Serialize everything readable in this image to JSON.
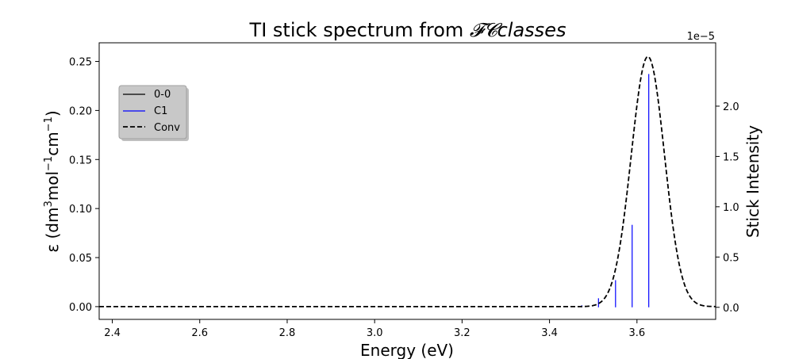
{
  "chart_data": {
    "type": "line",
    "title": "TI stick spectrum from ",
    "title_script": "𝓕𝓒",
    "title_italic": "classes",
    "xlabel": "Energy (eV)",
    "ylabel_left_prefix": "ε (dm",
    "ylabel_left_sup1": "3",
    "ylabel_left_mid": "mol",
    "ylabel_left_sup2": "−1",
    "ylabel_left_mid2": "cm",
    "ylabel_left_sup3": "−1",
    "ylabel_left_suffix": ")",
    "ylabel_right": "Stick Intensity",
    "right_axis_multiplier": "1e−5",
    "xlim": [
      2.37,
      3.78
    ],
    "ylim_left": [
      -0.013,
      0.269
    ],
    "ylim_right": [
      -1.2e-06,
      2.63e-05
    ],
    "x_ticks": [
      2.4,
      2.6,
      2.8,
      3.0,
      3.2,
      3.4,
      3.6
    ],
    "x_tick_labels": [
      "2.4",
      "2.6",
      "2.8",
      "3.0",
      "3.2",
      "3.4",
      "3.6"
    ],
    "y_left_ticks": [
      0.0,
      0.05,
      0.1,
      0.15,
      0.2,
      0.25
    ],
    "y_left_tick_labels": [
      "0.00",
      "0.05",
      "0.10",
      "0.15",
      "0.20",
      "0.25"
    ],
    "y_right_ticks": [
      0.0,
      5e-06,
      1e-05,
      1.5e-05,
      2e-05
    ],
    "y_right_tick_labels": [
      "0.0",
      "0.5",
      "1.0",
      "1.5",
      "2.0"
    ],
    "grid": false,
    "legend_position": "upper-left",
    "legend": [
      {
        "label": "0-0",
        "style": "solid",
        "color": "#000000"
      },
      {
        "label": "C1",
        "style": "solid",
        "color": "#0000ff"
      },
      {
        "label": "Conv",
        "style": "dashed",
        "color": "#000000"
      }
    ],
    "series": [
      {
        "name": "C1",
        "kind": "sticks",
        "axis": "right",
        "color": "#0000ff",
        "x": [
          3.474,
          3.512,
          3.551,
          3.589,
          3.627
        ],
        "y": [
          2e-07,
          9e-07,
          2.7e-06,
          8.2e-06,
          2.32e-05
        ]
      },
      {
        "name": "Conv",
        "kind": "gaussian",
        "axis": "left",
        "color": "#000000",
        "center": 3.625,
        "peak": 0.255,
        "sigma": 0.038
      }
    ]
  }
}
